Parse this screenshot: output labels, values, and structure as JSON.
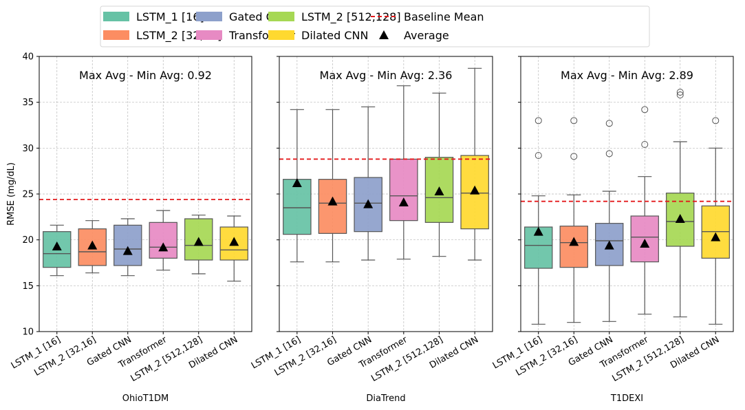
{
  "legend": {
    "items": [
      {
        "label": "LSTM_1 [16]",
        "kind": "patch",
        "color": "#66c2a5"
      },
      {
        "label": "LSTM_2 [32,16]",
        "kind": "patch",
        "color": "#fc8d62"
      },
      {
        "label": "Gated CNN",
        "kind": "patch",
        "color": "#8da0cb"
      },
      {
        "label": "Transformer",
        "kind": "patch",
        "color": "#e78ac3"
      },
      {
        "label": "LSTM_2 [512,128]",
        "kind": "patch",
        "color": "#a6d854"
      },
      {
        "label": "Dilated CNN",
        "kind": "patch",
        "color": "#ffd92f"
      },
      {
        "label": "Baseline Mean",
        "kind": "dashed-line",
        "color": "#e31a1c"
      },
      {
        "label": "Average",
        "kind": "triangle-marker",
        "color": "#000000"
      }
    ]
  },
  "chart_data": [
    {
      "type": "box",
      "xlabel": "OhioT1DM",
      "ylabel": "RMSE (mg/dL)",
      "ylim": [
        10,
        40
      ],
      "yticks": [
        10,
        15,
        20,
        25,
        30,
        35,
        40
      ],
      "grid": true,
      "annotation": "Max Avg - Min Avg: 0.92",
      "baseline": 24.4,
      "categories": [
        "LSTM_1 [16]",
        "LSTM_2 [32,16]",
        "Gated CNN",
        "Transformer",
        "LSTM_2 [512,128]",
        "Dilated CNN"
      ],
      "boxes": [
        {
          "whisker_low": 16.1,
          "q1": 17.0,
          "median": 18.5,
          "q3": 20.9,
          "whisker_high": 21.6,
          "mean": 19.3,
          "outliers": []
        },
        {
          "whisker_low": 16.4,
          "q1": 17.2,
          "median": 18.7,
          "q3": 21.2,
          "whisker_high": 22.1,
          "mean": 19.4,
          "outliers": []
        },
        {
          "whisker_low": 16.1,
          "q1": 17.2,
          "median": 19.0,
          "q3": 21.6,
          "whisker_high": 22.3,
          "mean": 18.8,
          "outliers": []
        },
        {
          "whisker_low": 16.7,
          "q1": 18.0,
          "median": 19.2,
          "q3": 21.9,
          "whisker_high": 23.2,
          "mean": 19.2,
          "outliers": []
        },
        {
          "whisker_low": 16.3,
          "q1": 17.8,
          "median": 19.4,
          "q3": 22.3,
          "whisker_high": 22.7,
          "mean": 19.8,
          "outliers": []
        },
        {
          "whisker_low": 15.5,
          "q1": 17.8,
          "median": 18.9,
          "q3": 21.4,
          "whisker_high": 22.6,
          "mean": 19.8,
          "outliers": []
        }
      ]
    },
    {
      "type": "box",
      "xlabel": "DiaTrend",
      "ylabel": "",
      "ylim": [
        10,
        40
      ],
      "yticks": [
        10,
        15,
        20,
        25,
        30,
        35,
        40
      ],
      "grid": true,
      "annotation": "Max Avg - Min Avg: 2.36",
      "baseline": 28.8,
      "categories": [
        "LSTM_1 [16]",
        "LSTM_2 [32,16]",
        "Gated CNN",
        "Transformer",
        "LSTM_2 [512,128]",
        "Dilated CNN"
      ],
      "boxes": [
        {
          "whisker_low": 17.6,
          "q1": 20.6,
          "median": 23.5,
          "q3": 26.6,
          "whisker_high": 34.2,
          "mean": 26.2,
          "outliers": []
        },
        {
          "whisker_low": 17.6,
          "q1": 20.7,
          "median": 24.0,
          "q3": 26.6,
          "whisker_high": 34.2,
          "mean": 24.2,
          "outliers": []
        },
        {
          "whisker_low": 17.8,
          "q1": 20.9,
          "median": 24.0,
          "q3": 26.8,
          "whisker_high": 34.5,
          "mean": 23.9,
          "outliers": []
        },
        {
          "whisker_low": 17.9,
          "q1": 22.1,
          "median": 24.8,
          "q3": 28.8,
          "whisker_high": 36.8,
          "mean": 24.1,
          "outliers": []
        },
        {
          "whisker_low": 18.2,
          "q1": 21.9,
          "median": 24.6,
          "q3": 29.0,
          "whisker_high": 36.0,
          "mean": 25.3,
          "outliers": []
        },
        {
          "whisker_low": 17.8,
          "q1": 21.2,
          "median": 25.1,
          "q3": 29.2,
          "whisker_high": 38.7,
          "mean": 25.4,
          "outliers": []
        }
      ]
    },
    {
      "type": "box",
      "xlabel": "T1DEXI",
      "ylabel": "",
      "ylim": [
        10,
        40
      ],
      "yticks": [
        10,
        15,
        20,
        25,
        30,
        35,
        40
      ],
      "grid": true,
      "annotation": "Max Avg - Min Avg: 2.89",
      "baseline": 24.2,
      "categories": [
        "LSTM_1 [16]",
        "LSTM_2 [32,16]",
        "Gated CNN",
        "Transformer",
        "LSTM_2 [512,128]",
        "Dilated CNN"
      ],
      "boxes": [
        {
          "whisker_low": 10.8,
          "q1": 16.9,
          "median": 19.4,
          "q3": 21.4,
          "whisker_high": 24.8,
          "mean": 20.9,
          "outliers": [
            29.2,
            33.0
          ]
        },
        {
          "whisker_low": 11.0,
          "q1": 17.0,
          "median": 19.7,
          "q3": 21.5,
          "whisker_high": 24.9,
          "mean": 19.8,
          "outliers": [
            29.1,
            33.0
          ]
        },
        {
          "whisker_low": 11.1,
          "q1": 17.2,
          "median": 19.9,
          "q3": 21.8,
          "whisker_high": 25.3,
          "mean": 19.4,
          "outliers": [
            29.4,
            32.7
          ]
        },
        {
          "whisker_low": 11.9,
          "q1": 17.6,
          "median": 20.3,
          "q3": 22.6,
          "whisker_high": 26.9,
          "mean": 19.6,
          "outliers": [
            30.4,
            34.2
          ]
        },
        {
          "whisker_low": 11.6,
          "q1": 19.3,
          "median": 22.0,
          "q3": 25.1,
          "whisker_high": 30.7,
          "mean": 22.3,
          "outliers": [
            35.8,
            36.1
          ]
        },
        {
          "whisker_low": 10.8,
          "q1": 18.0,
          "median": 20.9,
          "q3": 23.7,
          "whisker_high": 30.0,
          "mean": 20.3,
          "outliers": [
            33.0
          ]
        }
      ]
    }
  ]
}
